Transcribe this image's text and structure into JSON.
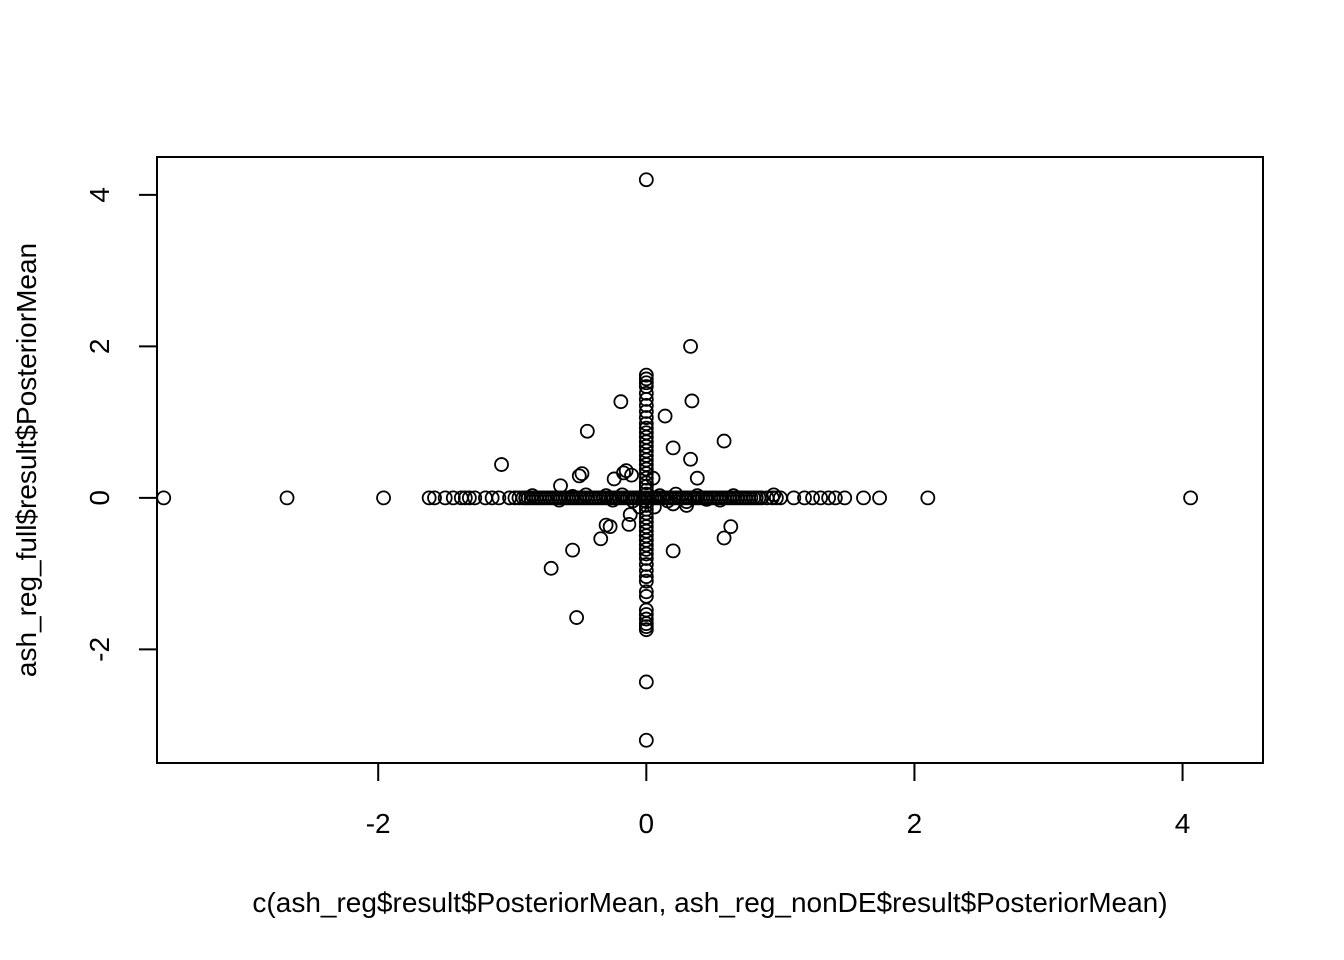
{
  "chart_data": {
    "type": "scatter",
    "title": "",
    "xlabel": "c(ash_reg$result$PosteriorMean, ash_reg_nonDE$result$PosteriorMean)",
    "ylabel": "ash_reg_full$result$PosteriorMean",
    "xlim": [
      -3.65,
      4.6
    ],
    "ylim": [
      -3.5,
      4.5
    ],
    "x_ticks": [
      -2,
      0,
      2,
      4
    ],
    "y_ticks": [
      -2,
      0,
      2,
      4
    ],
    "x_tick_labels": [
      "-2",
      "0",
      "2",
      "4"
    ],
    "y_tick_labels": [
      "-2",
      "0",
      "2",
      "4"
    ],
    "grid": false,
    "legend": "none",
    "marker": "open-circle",
    "point_color": "#000000",
    "points": [
      [
        -3.6,
        0
      ],
      [
        -2.68,
        0
      ],
      [
        -1.96,
        0
      ],
      [
        -1.62,
        0
      ],
      [
        -1.58,
        0
      ],
      [
        -1.5,
        0
      ],
      [
        -1.44,
        0
      ],
      [
        -1.38,
        0
      ],
      [
        -1.35,
        0
      ],
      [
        -1.32,
        0
      ],
      [
        -1.28,
        0
      ],
      [
        -1.2,
        0
      ],
      [
        -1.15,
        0
      ],
      [
        -1.1,
        0
      ],
      [
        -1.02,
        0
      ],
      [
        -0.98,
        0
      ],
      [
        -0.95,
        0
      ],
      [
        -0.92,
        0
      ],
      [
        -0.9,
        0
      ],
      [
        -0.88,
        0
      ],
      [
        -0.86,
        0
      ],
      [
        -0.84,
        0
      ],
      [
        -0.82,
        0
      ],
      [
        -0.8,
        0
      ],
      [
        -0.78,
        0
      ],
      [
        -0.76,
        0
      ],
      [
        -0.74,
        0
      ],
      [
        -0.72,
        0
      ],
      [
        -0.7,
        0
      ],
      [
        -0.68,
        0
      ],
      [
        -0.66,
        0
      ],
      [
        -0.64,
        0
      ],
      [
        -0.62,
        0
      ],
      [
        -0.6,
        0
      ],
      [
        -0.58,
        0
      ],
      [
        -0.56,
        0
      ],
      [
        -0.54,
        0
      ],
      [
        -0.52,
        0
      ],
      [
        -0.5,
        0
      ],
      [
        -0.48,
        0
      ],
      [
        -0.46,
        0
      ],
      [
        -0.44,
        0
      ],
      [
        -0.42,
        0
      ],
      [
        -0.4,
        0
      ],
      [
        -0.38,
        0
      ],
      [
        -0.36,
        0
      ],
      [
        -0.34,
        0
      ],
      [
        -0.32,
        0
      ],
      [
        -0.3,
        0
      ],
      [
        -0.28,
        0
      ],
      [
        -0.26,
        0
      ],
      [
        -0.24,
        0
      ],
      [
        -0.22,
        0
      ],
      [
        -0.2,
        0
      ],
      [
        -0.18,
        0
      ],
      [
        -0.16,
        0
      ],
      [
        -0.14,
        0
      ],
      [
        -0.12,
        0
      ],
      [
        -0.1,
        0
      ],
      [
        -0.08,
        0
      ],
      [
        -0.06,
        0
      ],
      [
        -0.04,
        0
      ],
      [
        -0.02,
        0
      ],
      [
        0.02,
        0
      ],
      [
        0.04,
        0
      ],
      [
        0.06,
        0
      ],
      [
        0.08,
        0
      ],
      [
        0.1,
        0
      ],
      [
        0.12,
        0
      ],
      [
        0.14,
        0
      ],
      [
        0.16,
        0
      ],
      [
        0.18,
        0
      ],
      [
        0.2,
        0
      ],
      [
        0.22,
        0
      ],
      [
        0.24,
        0
      ],
      [
        0.26,
        0
      ],
      [
        0.28,
        0
      ],
      [
        0.3,
        0
      ],
      [
        0.32,
        0
      ],
      [
        0.34,
        0
      ],
      [
        0.36,
        0
      ],
      [
        0.38,
        0
      ],
      [
        0.4,
        0
      ],
      [
        0.42,
        0
      ],
      [
        0.44,
        0
      ],
      [
        0.46,
        0
      ],
      [
        0.48,
        0
      ],
      [
        0.5,
        0
      ],
      [
        0.52,
        0
      ],
      [
        0.54,
        0
      ],
      [
        0.56,
        0
      ],
      [
        0.58,
        0
      ],
      [
        0.6,
        0
      ],
      [
        0.62,
        0
      ],
      [
        0.64,
        0
      ],
      [
        0.66,
        0
      ],
      [
        0.68,
        0
      ],
      [
        0.7,
        0
      ],
      [
        0.72,
        0
      ],
      [
        0.74,
        0
      ],
      [
        0.76,
        0
      ],
      [
        0.78,
        0
      ],
      [
        0.8,
        0
      ],
      [
        0.82,
        0
      ],
      [
        0.84,
        0
      ],
      [
        0.86,
        0
      ],
      [
        0.9,
        0
      ],
      [
        0.94,
        0
      ],
      [
        0.97,
        0
      ],
      [
        1.0,
        0
      ],
      [
        1.1,
        0
      ],
      [
        1.18,
        0
      ],
      [
        1.24,
        0
      ],
      [
        1.3,
        0
      ],
      [
        1.36,
        0
      ],
      [
        1.41,
        0
      ],
      [
        1.48,
        0
      ],
      [
        1.62,
        0
      ],
      [
        1.74,
        0
      ],
      [
        2.1,
        0
      ],
      [
        4.06,
        0
      ],
      [
        -0.3,
        0.03
      ],
      [
        -0.25,
        -0.03
      ],
      [
        -0.18,
        0.04
      ],
      [
        -0.1,
        -0.04
      ],
      [
        0.1,
        0.03
      ],
      [
        0.16,
        -0.04
      ],
      [
        0.22,
        0.05
      ],
      [
        0.3,
        -0.05
      ],
      [
        0.38,
        0.03
      ],
      [
        0.55,
        -0.03
      ],
      [
        -0.55,
        0.02
      ],
      [
        -0.65,
        -0.03
      ],
      [
        -0.45,
        0.04
      ],
      [
        0.45,
        -0.02
      ],
      [
        0.65,
        0.03
      ],
      [
        0.95,
        0.04
      ],
      [
        -0.85,
        0.03
      ],
      [
        0,
        4.2
      ],
      [
        0,
        1.62
      ],
      [
        0,
        1.57
      ],
      [
        0,
        1.52
      ],
      [
        0,
        1.47
      ],
      [
        0,
        1.38
      ],
      [
        0,
        1.3
      ],
      [
        0,
        1.22
      ],
      [
        0,
        1.14
      ],
      [
        0,
        1.06
      ],
      [
        0,
        0.98
      ],
      [
        0,
        0.92
      ],
      [
        0,
        0.86
      ],
      [
        0,
        0.8
      ],
      [
        0,
        0.74
      ],
      [
        0,
        0.68
      ],
      [
        0,
        0.62
      ],
      [
        0,
        0.56
      ],
      [
        0,
        0.5
      ],
      [
        0,
        0.44
      ],
      [
        0,
        0.38
      ],
      [
        0,
        0.32
      ],
      [
        0,
        0.26
      ],
      [
        0,
        0.2
      ],
      [
        0,
        0.15
      ],
      [
        0,
        0.1
      ],
      [
        0,
        0.05
      ],
      [
        0,
        0
      ],
      [
        0,
        -0.05
      ],
      [
        0,
        -0.1
      ],
      [
        0,
        -0.15
      ],
      [
        0,
        -0.2
      ],
      [
        0,
        -0.26
      ],
      [
        0,
        -0.32
      ],
      [
        0,
        -0.38
      ],
      [
        0,
        -0.44
      ],
      [
        0,
        -0.5
      ],
      [
        0,
        -0.56
      ],
      [
        0,
        -0.62
      ],
      [
        0,
        -0.68
      ],
      [
        0,
        -0.74
      ],
      [
        0,
        -0.8
      ],
      [
        0,
        -0.88
      ],
      [
        0,
        -0.96
      ],
      [
        0,
        -1.04
      ],
      [
        0,
        -1.1
      ],
      [
        0,
        -1.24
      ],
      [
        0,
        -1.3
      ],
      [
        0,
        -1.48
      ],
      [
        0,
        -1.54
      ],
      [
        0,
        -1.6
      ],
      [
        0,
        -1.66
      ],
      [
        0,
        -1.7
      ],
      [
        0,
        -1.74
      ],
      [
        0,
        -2.43
      ],
      [
        0,
        -3.2
      ],
      [
        0.33,
        2.0
      ],
      [
        0.34,
        1.28
      ],
      [
        -0.19,
        1.27
      ],
      [
        0.14,
        1.08
      ],
      [
        -0.44,
        0.88
      ],
      [
        0.58,
        0.75
      ],
      [
        0.2,
        0.66
      ],
      [
        0.33,
        0.51
      ],
      [
        -1.08,
        0.44
      ],
      [
        -0.15,
        0.36
      ],
      [
        -0.48,
        0.32
      ],
      [
        -0.17,
        0.33
      ],
      [
        -0.11,
        0.3
      ],
      [
        -0.5,
        0.29
      ],
      [
        0.38,
        0.26
      ],
      [
        -0.24,
        0.25
      ],
      [
        0.05,
        0.26
      ],
      [
        -0.64,
        0.16
      ],
      [
        -0.12,
        -0.22
      ],
      [
        -0.3,
        -0.36
      ],
      [
        -0.27,
        -0.38
      ],
      [
        -0.13,
        -0.35
      ],
      [
        0.63,
        -0.38
      ],
      [
        -0.34,
        -0.54
      ],
      [
        0.58,
        -0.53
      ],
      [
        -0.55,
        -0.69
      ],
      [
        0.2,
        -0.7
      ],
      [
        -0.71,
        -0.93
      ],
      [
        -0.52,
        -1.58
      ],
      [
        -0.05,
        -0.12
      ],
      [
        0.06,
        -0.12
      ],
      [
        0.3,
        -0.1
      ],
      [
        0.2,
        -0.08
      ]
    ]
  }
}
